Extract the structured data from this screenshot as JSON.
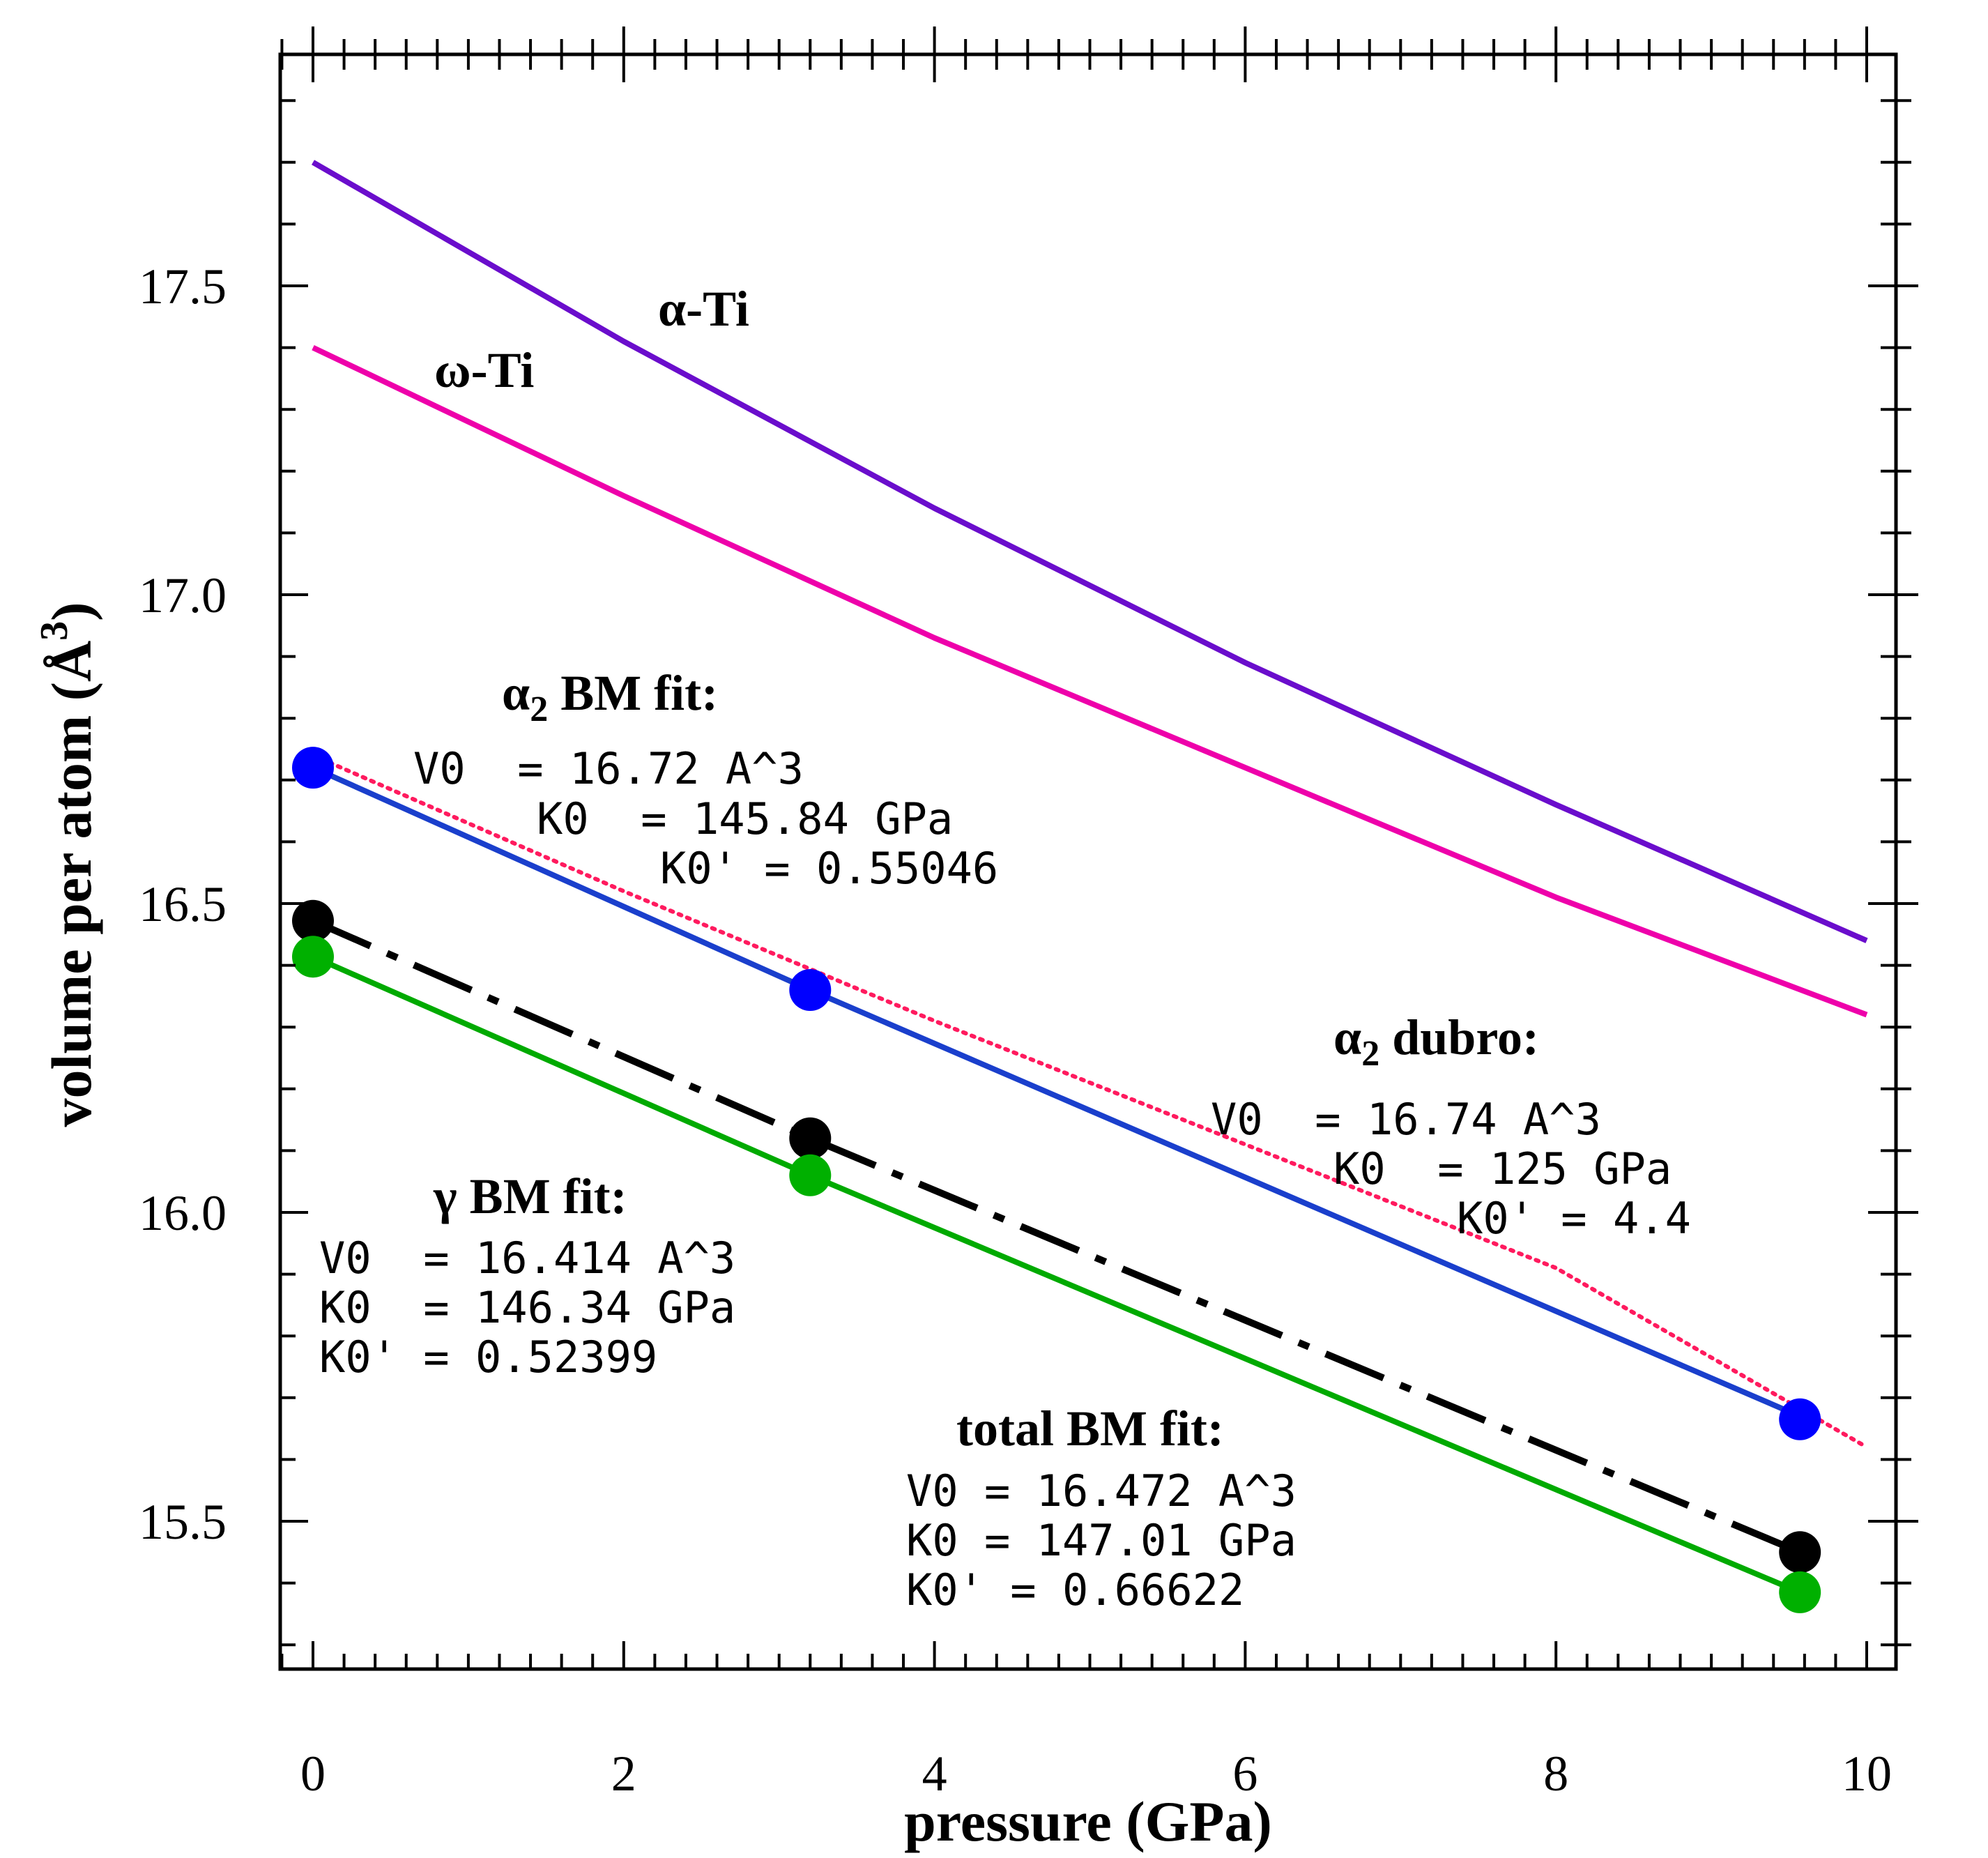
{
  "chart_data": {
    "type": "line",
    "xlabel": "pressure (GPa)",
    "ylabel": {
      "text": "volume per atom (Å",
      "sup": "3",
      "close": ")"
    },
    "xlim": [
      -0.2,
      10.2
    ],
    "ylim": [
      15.2,
      17.9
    ],
    "xticks": [
      0,
      2,
      4,
      6,
      8,
      10
    ],
    "xtick_labels": [
      "0",
      "2",
      "4",
      "6",
      "8",
      "10"
    ],
    "yticks": [
      15.5,
      16.0,
      16.5,
      17.0,
      17.5
    ],
    "ytick_labels": [
      "15.5",
      "16.0",
      "16.5",
      "17.0",
      "17.5"
    ],
    "series": [
      {
        "name": "α-Ti",
        "label": "α-Ti",
        "color": "#6a0dcc",
        "style": "solid",
        "x": [
          0,
          2,
          4,
          6,
          8,
          10
        ],
        "y": [
          17.7,
          17.41,
          17.14,
          16.89,
          16.66,
          16.44
        ]
      },
      {
        "name": "ω-Ti",
        "label": "ω-Ti",
        "color": "#ee00aa",
        "style": "solid",
        "x": [
          0,
          2,
          4,
          6,
          8,
          10
        ],
        "y": [
          17.4,
          17.16,
          16.93,
          16.72,
          16.51,
          16.32
        ]
      },
      {
        "name": "α2 dubro",
        "color": "#ff1a5e",
        "style": "dotted",
        "x": [
          0,
          2,
          4,
          6,
          8,
          10
        ],
        "y": [
          16.74,
          16.52,
          16.31,
          16.11,
          15.91,
          15.62
        ]
      },
      {
        "name": "α2 BM fit",
        "color": "#1a3fcc",
        "style": "solid",
        "x": [
          0,
          3.2,
          9.57
        ],
        "y": [
          16.72,
          16.36,
          15.67
        ]
      },
      {
        "name": "total BM fit",
        "color": "#000000",
        "style": "dashdot",
        "x": [
          0,
          3.2,
          9.57
        ],
        "y": [
          16.472,
          16.12,
          15.45
        ]
      },
      {
        "name": "γ BM fit",
        "color": "#00aa00",
        "style": "solid",
        "x": [
          0,
          3.2,
          9.57
        ],
        "y": [
          16.414,
          16.06,
          15.385
        ]
      }
    ],
    "points": [
      {
        "series": "α2 BM fit",
        "color": "#0000ff",
        "x": [
          0,
          3.2,
          9.57
        ],
        "y": [
          16.72,
          16.36,
          15.665
        ]
      },
      {
        "series": "total BM fit",
        "color": "#000000",
        "x": [
          0,
          3.2,
          9.57
        ],
        "y": [
          16.472,
          16.12,
          15.45
        ]
      },
      {
        "series": "γ BM fit",
        "color": "#00b000",
        "x": [
          0,
          3.2,
          9.57
        ],
        "y": [
          16.414,
          16.06,
          15.385
        ]
      }
    ],
    "annotations": {
      "alpha2_bm": {
        "title": "α",
        "sub": "2",
        "title_rest": " BM fit:",
        "lines": [
          "V0  = 16.72 A^3",
          "K0  = 145.84 GPa",
          "K0' = 0.55046"
        ]
      },
      "alpha2_dubro": {
        "title": "α",
        "sub": "2",
        "title_rest": " dubro:",
        "lines": [
          "V0  = 16.74 A^3",
          "K0  = 125 GPa",
          "K0' = 4.4"
        ]
      },
      "gamma_bm": {
        "title": "γ BM fit:",
        "lines": [
          "V0  = 16.414 A^3",
          "K0  = 146.34 GPa",
          "K0' = 0.52399"
        ]
      },
      "total_bm": {
        "title": "total BM fit:",
        "lines": [
          "V0 = 16.472 A^3",
          "K0 = 147.01 GPa",
          "K0' = 0.66622"
        ]
      }
    }
  }
}
